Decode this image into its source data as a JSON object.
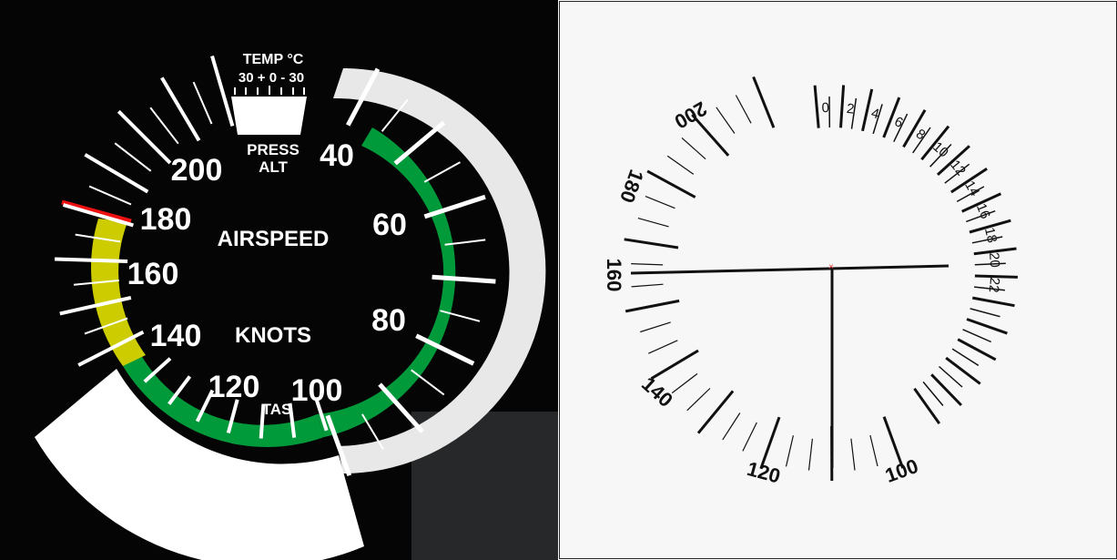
{
  "gauge": {
    "temp_title": "TEMP °C",
    "temp_scale": "30 + 0 - 30",
    "press_alt_line1": "PRESS",
    "press_alt_line2": "ALT",
    "airspeed_label": "AIRSPEED",
    "knots_label": "KNOTS",
    "tas_label": "TAS",
    "speed_labels": [
      "40",
      "60",
      "80",
      "100",
      "120",
      "140",
      "160",
      "180",
      "200"
    ],
    "colors": {
      "green_arc": "#009a3a",
      "yellow_arc": "#cccc00",
      "red_line": "#ee1111",
      "tas_band": "#e6e6e6",
      "face": "#050505"
    }
  },
  "schematic": {
    "speed_labels": [
      "100",
      "120",
      "140",
      "160",
      "180",
      "200"
    ],
    "tas_labels": [
      "0",
      "2",
      "4",
      "6",
      "8",
      "10",
      "12",
      "14",
      "16",
      "18",
      "20",
      "22"
    ],
    "colors": {
      "background": "#f7f7f7",
      "ink": "#111111",
      "center_mark": "#ee3333"
    }
  }
}
